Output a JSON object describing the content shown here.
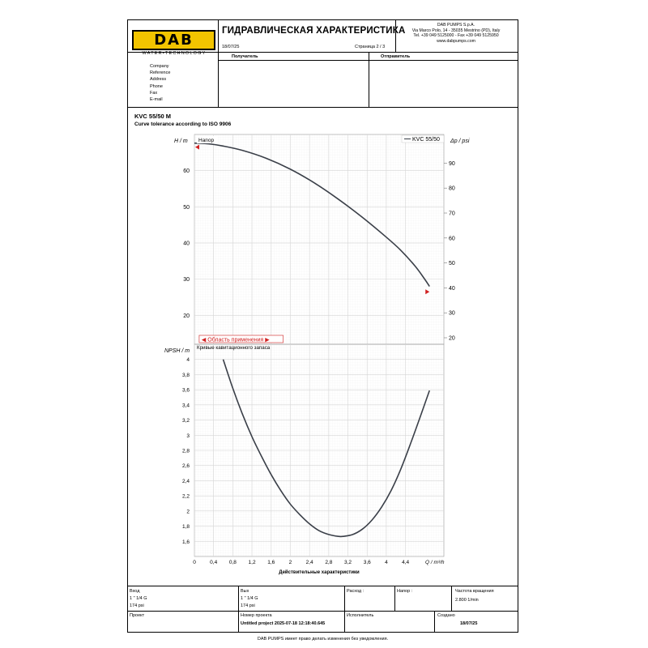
{
  "header": {
    "logo_text": "DAB",
    "logo_tagline": "WATER•TECHNOLOGY",
    "title": "ГИДРАВЛИЧЕСКАЯ ХАРАКТЕРИСТИКА",
    "date": "18/07/25",
    "page": "Страница 2 / 3",
    "company_address": [
      "DAB PUMPS S.p.A.",
      "Via Marco Polo, 14 - 35035 Mestrino (PD), Italy",
      "Tel. +39 049 5125000 - Fax +39 049 5125950",
      "www.dabpumps.com"
    ],
    "brand_color": "#f2c400"
  },
  "parties": {
    "recipient_label": "Получатель",
    "sender_label": "Отправитель",
    "fields": [
      "Company",
      "Reference",
      "Address",
      "Phone",
      "Fax",
      "E-mail"
    ]
  },
  "product": {
    "model": "KVC 55/50 M",
    "tolerance_note": "Curve tolerance according to ISO 9906"
  },
  "footer": {
    "inlet_label": "Вход",
    "inlet_size": "1 \" 1/4 G",
    "inlet_pressure": "174 psi",
    "outlet_label": "Вых",
    "outlet_size": "1 \" 1/4 G",
    "outlet_pressure": "174 psi",
    "flow_label": "Расход :",
    "head_label": "Напор :",
    "speed_label": "Частота вращения",
    "speed_value": "2.800 1/min",
    "project_label": "Проект",
    "project_number_label": "Номер проекта",
    "project_number_value": "Untitled project 2025-07-18 12:18:40.645",
    "executor_label": "Исполнитель",
    "created_label": "Создано",
    "created_value": "18/07/25",
    "disclaimer": "DAB PUMPS имеет право делать изменения без уведомления."
  },
  "chart_data": [
    {
      "type": "line",
      "panel_title": "Напор",
      "ylabel": "H / m",
      "ylabel_right": "Δp / psi",
      "ylim": [
        12,
        70
      ],
      "yticks": [
        20,
        30,
        40,
        50,
        60
      ],
      "ylim_right": [
        17.4,
        101.5
      ],
      "yticks_right": [
        20,
        30,
        40,
        50,
        60,
        70,
        80,
        90
      ],
      "xlim": [
        0,
        5.2
      ],
      "legend": "KVC 55/50",
      "legend_position": "top-right",
      "range_label": "◀ Область применения ▶",
      "range_x": [
        0.1,
        1.85
      ],
      "operating_limits_x": [
        0,
        4.9
      ],
      "operating_limits_y": [
        66.5,
        26.5
      ],
      "grid": true,
      "series": [
        {
          "name": "KVC 55/50",
          "x": [
            0,
            0.3,
            0.6,
            1.0,
            1.5,
            2.0,
            2.5,
            3.0,
            3.5,
            4.0,
            4.3,
            4.6,
            4.8,
            4.9
          ],
          "y": [
            67.6,
            67.4,
            66.8,
            65.6,
            63.4,
            60.4,
            56.6,
            52.1,
            47.1,
            41.6,
            38.0,
            33.6,
            30.0,
            28.0
          ]
        }
      ]
    },
    {
      "type": "line",
      "panel_title": "Кривые кавитационного запаса",
      "ylabel": "NPSH / m",
      "xlabel": "Q / m³/h",
      "x_axis_title": "Действительные характеристики",
      "ylim": [
        1.4,
        4.2
      ],
      "yticks": [
        1.6,
        1.8,
        2,
        2.2,
        2.4,
        2.6,
        2.8,
        3,
        3.2,
        3.4,
        3.6,
        3.8,
        4
      ],
      "yticklabels": [
        "1,6",
        "1,8",
        "2",
        "2,2",
        "2,4",
        "2,6",
        "2,8",
        "3",
        "3,2",
        "3,4",
        "3,6",
        "3,8",
        "4"
      ],
      "xlim": [
        0,
        5.2
      ],
      "xticks": [
        0,
        0.4,
        0.8,
        1.2,
        1.6,
        2.0,
        2.4,
        2.8,
        3.2,
        3.6,
        4.0,
        4.4
      ],
      "xticklabels": [
        "0",
        "0,4",
        "0,8",
        "1,2",
        "1,6",
        "2",
        "2,4",
        "2,8",
        "3,2",
        "3,6",
        "4",
        "4,4"
      ],
      "grid": true,
      "series": [
        {
          "name": "",
          "x": [
            0.6,
            0.8,
            1.0,
            1.2,
            1.4,
            1.6,
            1.8,
            2.0,
            2.2,
            2.4,
            2.6,
            2.8,
            3.0,
            3.1,
            3.3,
            3.5,
            3.7,
            3.9,
            4.1,
            4.3,
            4.5,
            4.7,
            4.9
          ],
          "y": [
            4.0,
            3.62,
            3.28,
            2.98,
            2.72,
            2.48,
            2.27,
            2.09,
            1.95,
            1.83,
            1.74,
            1.69,
            1.665,
            1.665,
            1.69,
            1.76,
            1.88,
            2.05,
            2.27,
            2.55,
            2.88,
            3.23,
            3.59
          ]
        }
      ]
    }
  ]
}
